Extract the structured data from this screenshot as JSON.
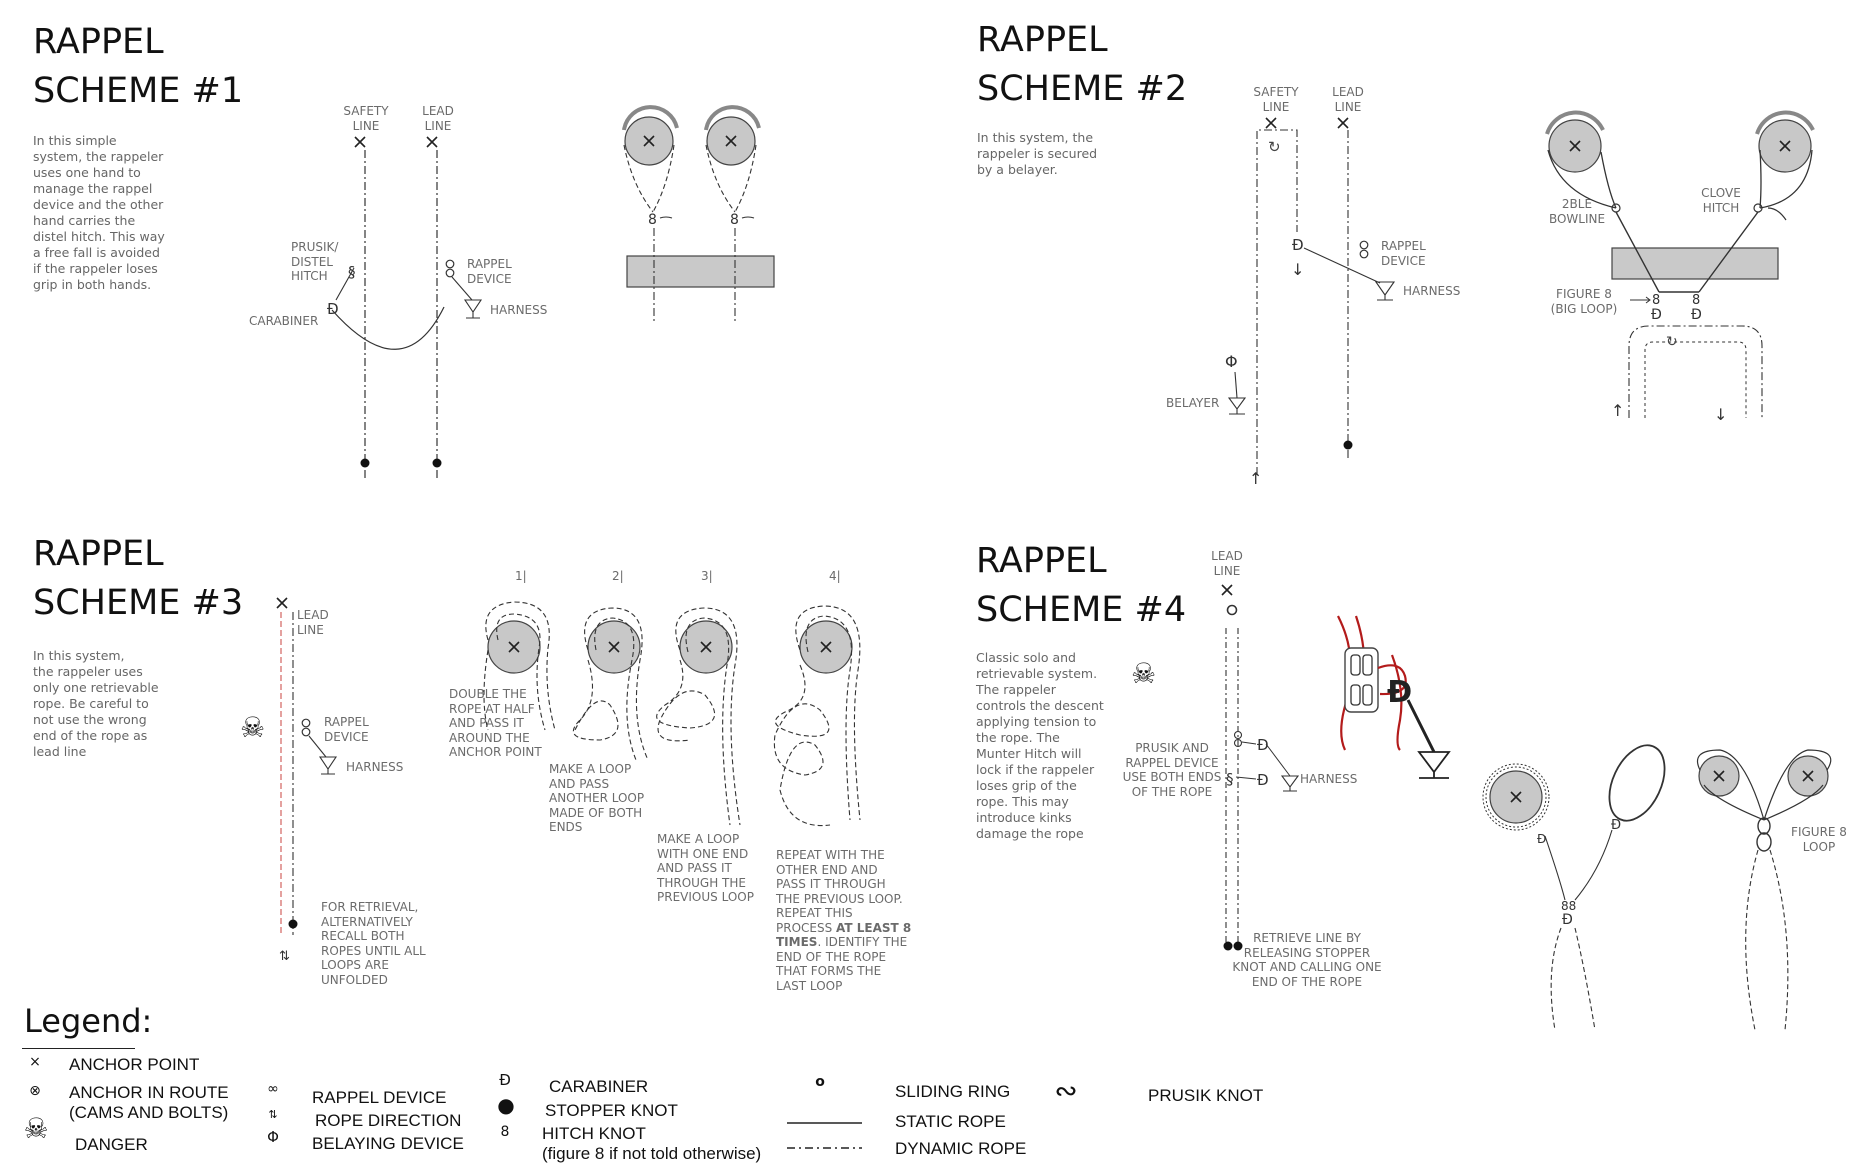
{
  "scheme1": {
    "title": "RAPPEL\nSCHEME #1",
    "description": "In this simple\nsystem, the rappeler\nuses one hand to\nmanage the rappel\ndevice and the other\nhand carries the\ndistel hitch. This way\na free fall is avoided\nif the rappeler loses\ngrip in both hands.",
    "safety_line": "SAFETY\nLINE",
    "lead_line": "LEAD\nLINE",
    "prusik": "PRUSIK/\nDISTEL\nHITCH",
    "rappel_device": "RAPPEL\nDEVICE",
    "carabiner": "CARABINER",
    "harness": "HARNESS"
  },
  "scheme2": {
    "title": "RAPPEL\nSCHEME #2",
    "description": "In this system, the\nrappeler is secured\nby a belayer.",
    "safety_line": "SAFETY\nLINE",
    "lead_line": "LEAD\nLINE",
    "rappel_device": "RAPPEL\nDEVICE",
    "harness": "HARNESS",
    "belayer": "BELAYER",
    "bowline": "2BLE\nBOWLINE",
    "clove_hitch": "CLOVE\nHITCH",
    "figure8": "FIGURE 8\n(BIG LOOP)"
  },
  "scheme3": {
    "title": "RAPPEL\nSCHEME #3",
    "description": "     In this system,\nthe rappeler uses\nonly one retrievable\nrope. Be careful to\nnot use the wrong\nend of the rope as\nlead line",
    "lead_line": "LEAD\nLINE",
    "rappel_device": "RAPPEL\nDEVICE",
    "harness": "HARNESS",
    "retrieval": "FOR RETRIEVAL,\nALTERNATIVELY\nRECALL BOTH\nROPES UNTIL ALL\nLOOPS ARE\nUNFOLDED",
    "step_numbers": [
      "1|",
      "2|",
      "3|",
      "4|"
    ],
    "step1": "DOUBLE THE\nROPE AT HALF\nAND PASS IT\nAROUND THE\nANCHOR POINT",
    "step2": "MAKE A LOOP\nAND PASS\nANOTHER LOOP\nMADE OF BOTH\nENDS",
    "step3": "MAKE A LOOP\nWITH ONE END\nAND PASS IT\nTHROUGH THE\nPREVIOUS LOOP",
    "step4_a": "REPEAT  WITH THE\nOTHER END AND\nPASS IT THROUGH\nTHE PREVIOUS LOOP.\nREPEAT THIS\nPROCESS ",
    "step4_bold": "AT LEAST 8\nTIMES",
    "step4_b": ". IDENTIFY THE\nEND OF THE ROPE\nTHAT FORMS THE\nLAST LOOP"
  },
  "scheme4": {
    "title": "RAPPEL\nSCHEME #4",
    "description": "Classic solo and\nretrievable system.\nThe rappeler\ncontrols the descent\napplying tension to\nthe rope. The\nMunter Hitch will\nlock if the rappeler\nloses grip of the\nrope. This  may\nintroduce kinks\ndamage the rope",
    "lead_line": "LEAD\nLINE",
    "prusik": "PRUSIK AND\nRAPPEL DEVICE\nUSE BOTH ENDS\nOF THE ROPE",
    "harness": "HARNESS",
    "retrieve": "RETRIEVE LINE BY\nRELEASING STOPPER\nKNOT AND CALLING ONE\nEND OF THE ROPE",
    "figure8": "FIGURE 8\nLOOP"
  },
  "legend": {
    "title": "Legend:",
    "items": [
      {
        "symbol": "×",
        "label": "ANCHOR POINT"
      },
      {
        "symbol": "⊗",
        "label": "ANCHOR IN ROUTE\n(CAMS AND BOLTS)"
      },
      {
        "symbol": "☠",
        "label": "DANGER"
      },
      {
        "symbol": "∞",
        "label": "RAPPEL DEVICE"
      },
      {
        "symbol": "⇅",
        "label": "ROPE DIRECTION"
      },
      {
        "symbol": "Φ",
        "label": "BELAYING DEVICE"
      },
      {
        "symbol": "Đ",
        "label": "CARABINER"
      },
      {
        "symbol": "●",
        "label": "STOPPER KNOT"
      },
      {
        "symbol": "8",
        "label": "HITCH KNOT\n(figure 8 if not told otherwise)"
      },
      {
        "symbol": "o",
        "label": "SLIDING RING"
      },
      {
        "symbol": "line-solid",
        "label": "STATIC ROPE"
      },
      {
        "symbol": "line-dashdot",
        "label": "DYNAMIC ROPE"
      },
      {
        "symbol": "∾",
        "label": "PRUSIK KNOT"
      }
    ]
  },
  "colors": {
    "ink": "#222222",
    "label_gray": "#6b6b6b",
    "anchor_fill": "#c8c8c8",
    "block_fill": "#c9c9c9",
    "rope_red": "#b31b1b"
  }
}
